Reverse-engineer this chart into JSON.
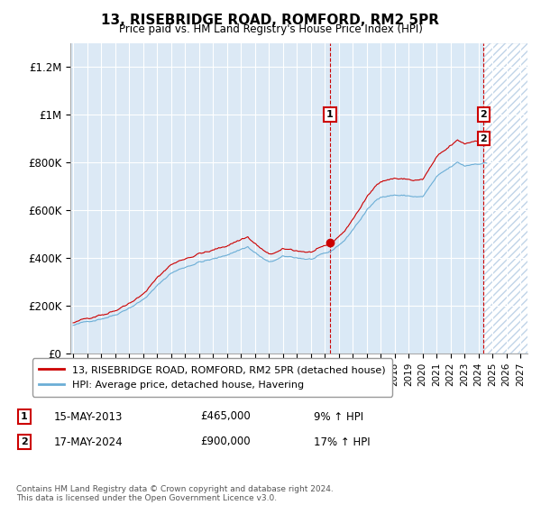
{
  "title": "13, RISEBRIDGE ROAD, ROMFORD, RM2 5PR",
  "subtitle": "Price paid vs. HM Land Registry's House Price Index (HPI)",
  "ylabel_ticks": [
    "£0",
    "£200K",
    "£400K",
    "£600K",
    "£800K",
    "£1M",
    "£1.2M"
  ],
  "ytick_values": [
    0,
    200000,
    400000,
    600000,
    800000,
    1000000,
    1200000
  ],
  "ylim": [
    0,
    1300000
  ],
  "xlim_start": 1995,
  "xlim_end": 2027.5,
  "hpi_color": "#6baed6",
  "price_color": "#cc0000",
  "point1_date": "15-MAY-2013",
  "point1_price": 465000,
  "point1_pct": "9%",
  "point2_date": "17-MAY-2024",
  "point2_price": 900000,
  "point2_pct": "17%",
  "legend_label1": "13, RISEBRIDGE ROAD, ROMFORD, RM2 5PR (detached house)",
  "legend_label2": "HPI: Average price, detached house, Havering",
  "footer": "Contains HM Land Registry data © Crown copyright and database right 2024.\nThis data is licensed under the Open Government Licence v3.0.",
  "background_color": "#dce9f5",
  "shade_color": "#daeaf7",
  "hatch_color": "#c0d4e8",
  "grid_color": "#ffffff",
  "sale1_x": 2013.37,
  "sale2_x": 2024.37
}
